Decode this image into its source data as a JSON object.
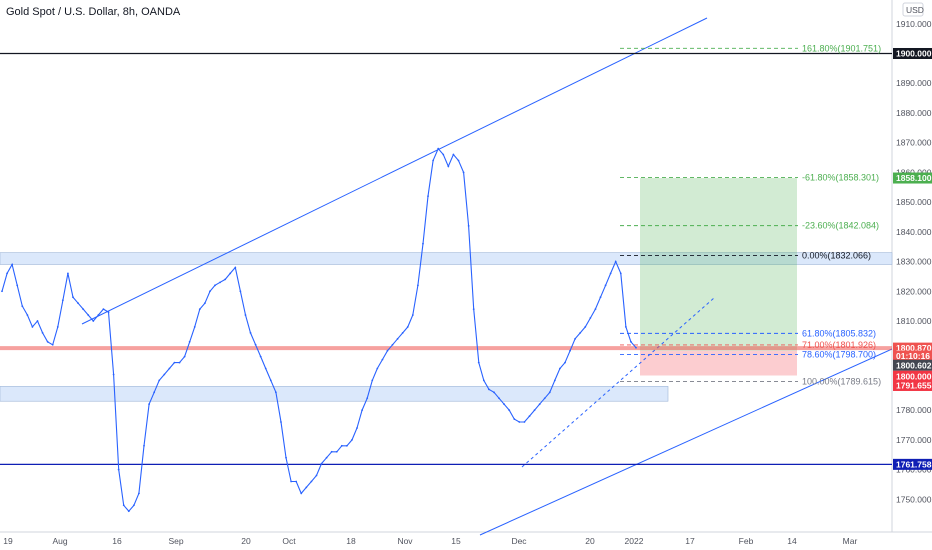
{
  "header": {
    "title": "Gold Spot / U.S. Dollar, 8h, OANDA"
  },
  "currency_badge": "USD",
  "chart_data": {
    "type": "line",
    "title": "Gold Spot / U.S. Dollar, 8h, OANDA",
    "ylim": [
      1739,
      1918
    ],
    "grid": false,
    "x_ticks": [
      "19",
      "Aug",
      "16",
      "Sep",
      "20",
      "Oct",
      "18",
      "Nov",
      "15",
      "Dec",
      "20",
      "2022",
      "17",
      "Feb",
      "14",
      "Mar"
    ],
    "y_ticks": [
      "1910.000",
      "1900.000",
      "1890.000",
      "1880.000",
      "1870.000",
      "1860.000",
      "1850.000",
      "1840.000",
      "1830.000",
      "1820.000",
      "1810.000",
      "1800.000",
      "1790.000",
      "1780.000",
      "1770.000",
      "1760.000",
      "1750.000"
    ],
    "series": [
      {
        "color": "#2962ff",
        "values": [
          1820,
          1826,
          1829,
          1822,
          1815,
          1812,
          1808,
          1810,
          1806,
          1803,
          1802,
          1808,
          1817,
          1826,
          1818,
          1816,
          1814,
          1812,
          1810,
          1812,
          1814,
          1813,
          1792,
          1760,
          1748,
          1746,
          1748,
          1752,
          1768,
          1782,
          1786,
          1790,
          1792,
          1794,
          1796,
          1796,
          1798,
          1803,
          1808,
          1814,
          1816,
          1820,
          1822,
          1823,
          1824,
          1826,
          1828,
          1820,
          1812,
          1806,
          1802,
          1798,
          1794,
          1790,
          1786,
          1776,
          1764,
          1756,
          1756,
          1752,
          1754,
          1756,
          1758,
          1762,
          1764,
          1766,
          1766,
          1768,
          1768,
          1770,
          1774,
          1780,
          1784,
          1790,
          1794,
          1797,
          1800,
          1802,
          1804,
          1806,
          1808,
          1812,
          1822,
          1836,
          1852,
          1864,
          1868,
          1866,
          1862,
          1866,
          1864,
          1860,
          1842,
          1814,
          1796,
          1790,
          1787,
          1786,
          1784,
          1782,
          1780,
          1777,
          1776,
          1776,
          1778,
          1780,
          1782,
          1784,
          1786,
          1790,
          1794,
          1796,
          1800,
          1804,
          1806,
          1808,
          1811,
          1814,
          1818,
          1822,
          1826,
          1830,
          1826,
          1808,
          1803,
          1801
        ]
      }
    ],
    "horizontal_levels": [
      {
        "price": 1900.0,
        "color": "#131722",
        "label": "1900.000"
      },
      {
        "price": 1761.758,
        "color": "#0f1fb5",
        "label": "1761.758"
      }
    ],
    "price_tags": [
      {
        "price": 1858.1,
        "label": "1858.100",
        "color": "#4caf50"
      },
      {
        "price": 1800.87,
        "label": "1800.870",
        "color": "#ef5350"
      },
      {
        "price": 1798.2,
        "label": "01:10:16",
        "color": "#ef5350"
      },
      {
        "price": 1795.1,
        "label": "1800.602",
        "color": "#434651"
      },
      {
        "price": 1791.4,
        "label": "1800.000",
        "color": "#f23645"
      },
      {
        "price": 1788.3,
        "label": "1791.655",
        "color": "#f23645"
      }
    ],
    "fib_levels": [
      {
        "label": "161.80%(1901.751)",
        "price": 1901.751,
        "color": "#4caf50"
      },
      {
        "label": "-61.80%(1858.301)",
        "price": 1858.301,
        "color": "#4caf50"
      },
      {
        "label": "-23.60%(1842.084)",
        "price": 1842.084,
        "color": "#4caf50"
      },
      {
        "label": "0.00%(1832.066)",
        "price": 1832.066,
        "color": "#131722"
      },
      {
        "label": "61.80%(1805.832)",
        "price": 1805.832,
        "color": "#2962ff"
      },
      {
        "label": "71.00%(1801.926)",
        "price": 1801.926,
        "color": "#ef5350"
      },
      {
        "label": "78.60%(1798.700)",
        "price": 1798.7,
        "color": "#2962ff"
      },
      {
        "label": "100.00%(1789.615)",
        "price": 1789.615,
        "color": "#787b86"
      }
    ],
    "zones": [
      {
        "name": "resistance",
        "price_range": [
          1829,
          1833
        ],
        "color": "#dbe8fb"
      },
      {
        "name": "support",
        "price_range": [
          1783,
          1788
        ],
        "color": "#dbe8fb"
      }
    ],
    "position": {
      "entry": 1800.0,
      "target": 1858.1,
      "stop": 1791.655
    }
  }
}
